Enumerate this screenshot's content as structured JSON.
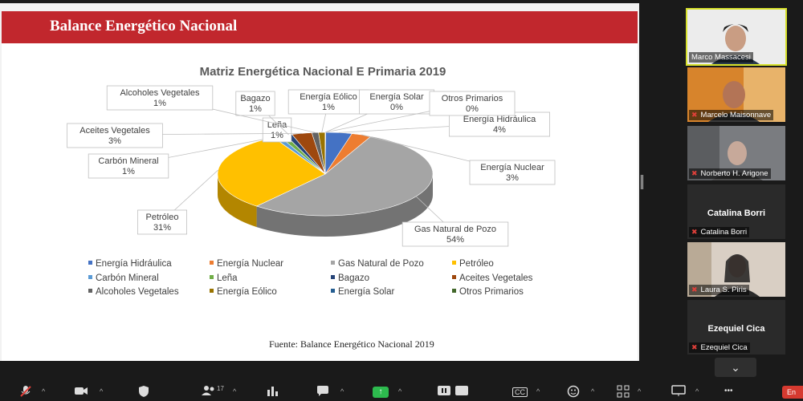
{
  "slide": {
    "header_title": "Balance Energético Nacional",
    "source": "Fuente: Balance Energético Nacional 2019"
  },
  "chart_data": {
    "type": "pie",
    "title": "Matriz Energética Nacional E Primaria 2019",
    "legend_position": "bottom",
    "slices": [
      {
        "name": "Energía Hidráulica",
        "label_value": "4%",
        "value": 4,
        "color": "#4472c4"
      },
      {
        "name": "Energía Nuclear",
        "label_value": "3%",
        "value": 3,
        "color": "#ed7d31"
      },
      {
        "name": "Gas Natural de Pozo",
        "label_value": "54%",
        "value": 54,
        "color": "#a5a5a5"
      },
      {
        "name": "Petróleo",
        "label_value": "31%",
        "value": 31,
        "color": "#ffc000"
      },
      {
        "name": "Carbón Mineral",
        "label_value": "1%",
        "value": 1,
        "color": "#5b9bd5"
      },
      {
        "name": "Leña",
        "label_value": "1%",
        "value": 1,
        "color": "#70ad47"
      },
      {
        "name": "Bagazo",
        "label_value": "1%",
        "value": 1,
        "color": "#264478"
      },
      {
        "name": "Aceites Vegetales",
        "label_value": "3%",
        "value": 3,
        "color": "#9e480e"
      },
      {
        "name": "Alcoholes Vegetales",
        "label_value": "1%",
        "value": 1,
        "color": "#636363"
      },
      {
        "name": "Energía Eólico",
        "label_value": "1%",
        "value": 1,
        "color": "#997300"
      },
      {
        "name": "Energía Solar",
        "label_value": "0%",
        "value": 0,
        "color": "#255e91"
      },
      {
        "name": "Otros Primarios",
        "label_value": "0%",
        "value": 0,
        "color": "#43682b"
      }
    ]
  },
  "participants": [
    {
      "name": "Marco Massacesi",
      "active": true,
      "muted": false
    },
    {
      "name": "Marcelo Maisonnave",
      "active": false,
      "muted": true
    },
    {
      "name": "Norberto H. Arigone",
      "active": false,
      "muted": true
    },
    {
      "name": "Catalina Borri",
      "active": false,
      "muted": true,
      "display_name": "Catalina Borri"
    },
    {
      "name": "Laura S. Piris",
      "active": false,
      "muted": true
    },
    {
      "name": "Ezequiel Cica",
      "active": false,
      "muted": true,
      "display_name": "Ezequiel Cica"
    }
  ],
  "toolbar": {
    "participants_count": "17",
    "end_label": "En",
    "cc_label": "CC",
    "more_label": "•••"
  },
  "icons": {
    "mic": "mic-muted-icon",
    "video": "video-icon",
    "security": "shield-icon",
    "participants": "people-icon",
    "polls": "bar-chart-icon",
    "chat": "chat-icon",
    "share": "share-screen-icon",
    "pause": "pause-icon",
    "cc": "cc-icon",
    "reactions": "smiley-icon",
    "apps": "apps-icon",
    "whiteboard": "whiteboard-icon",
    "more": "more-icon",
    "end": "end-icon"
  }
}
